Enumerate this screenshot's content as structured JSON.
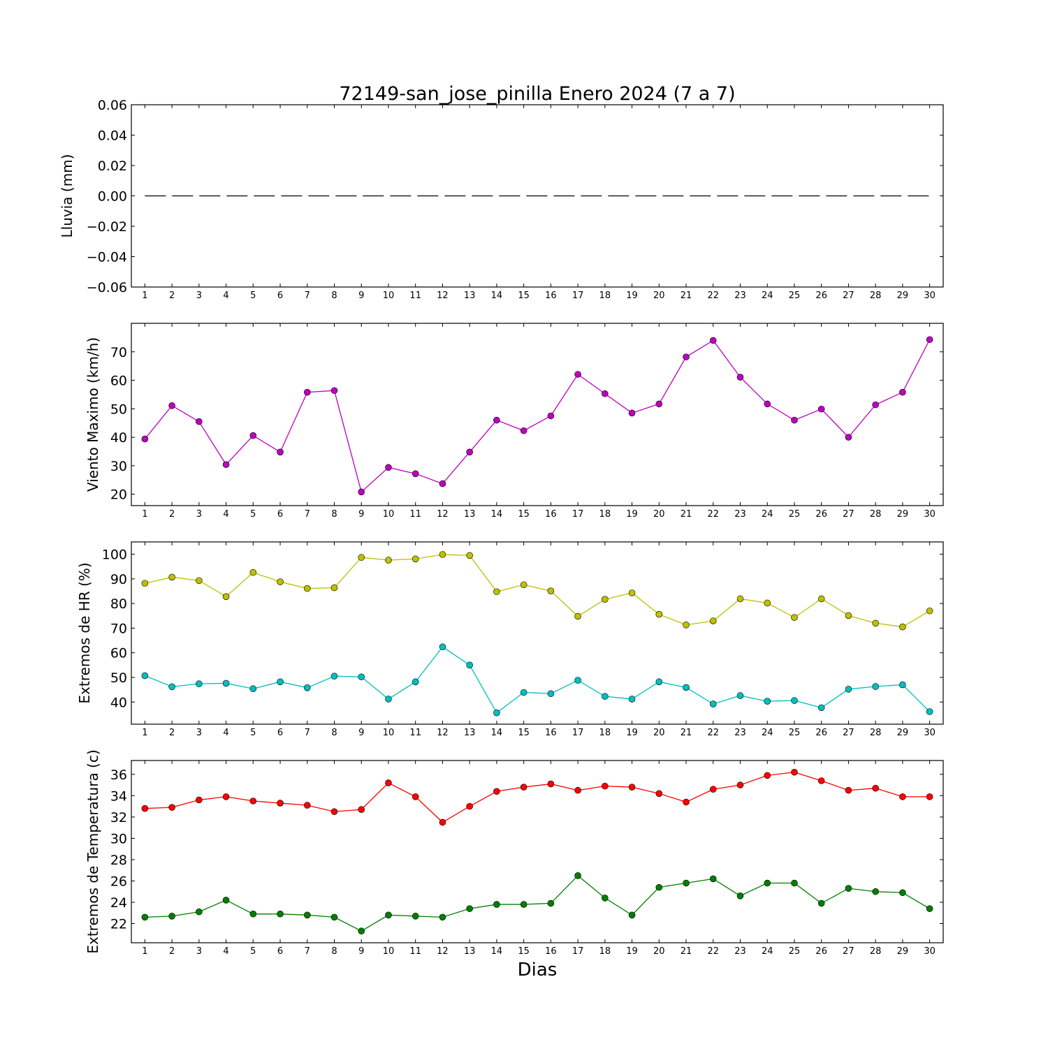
{
  "figure": {
    "title": "72149-san_jose_pinilla Enero 2024  (7 a 7)",
    "xlabel": "Dias"
  },
  "chart_data": [
    {
      "type": "line",
      "ylabel": "Lluvia (mm)",
      "x": [
        1,
        2,
        3,
        4,
        5,
        6,
        7,
        8,
        9,
        10,
        11,
        12,
        13,
        14,
        15,
        16,
        17,
        18,
        19,
        20,
        21,
        22,
        23,
        24,
        25,
        26,
        27,
        28,
        29,
        30
      ],
      "xlim": [
        0.5,
        30.5
      ],
      "ylim": [
        -0.06,
        0.06
      ],
      "yticks": [
        -0.06,
        -0.04,
        -0.02,
        0.0,
        0.02,
        0.04,
        0.06
      ],
      "ytick_labels": [
        "−0.06",
        "−0.04",
        "−0.02",
        "0.00",
        "0.02",
        "0.04",
        "0.06"
      ],
      "grid": false,
      "series": [
        {
          "color": "#000000",
          "style": "dashed",
          "markers": false,
          "values": [
            0,
            0,
            0,
            0,
            0,
            0,
            0,
            0,
            0,
            0,
            0,
            0,
            0,
            0,
            0,
            0,
            0,
            0,
            0,
            0,
            0,
            0,
            0,
            0,
            0,
            0,
            0,
            0,
            0,
            0
          ]
        }
      ]
    },
    {
      "type": "line",
      "ylabel": "Viento Maximo (km/h)",
      "x": [
        1,
        2,
        3,
        4,
        5,
        6,
        7,
        8,
        9,
        10,
        11,
        12,
        13,
        14,
        15,
        16,
        17,
        18,
        19,
        20,
        21,
        22,
        23,
        24,
        25,
        26,
        27,
        28,
        29,
        30
      ],
      "xlim": [
        0.5,
        30.5
      ],
      "ylim": [
        16,
        80
      ],
      "yticks": [
        20,
        30,
        40,
        50,
        60,
        70
      ],
      "ytick_labels": [
        "20",
        "30",
        "40",
        "50",
        "60",
        "70"
      ],
      "grid": false,
      "series": [
        {
          "color": "#bf00bf",
          "marker_color": "#bf00bf",
          "markers": true,
          "values": [
            39.4,
            51.1,
            45.5,
            30.4,
            40.6,
            34.8,
            55.8,
            56.4,
            20.8,
            29.4,
            27.2,
            23.7,
            34.8,
            46.0,
            42.3,
            47.5,
            62.1,
            55.3,
            48.5,
            51.7,
            68.2,
            74.0,
            61.1,
            51.7,
            46.0,
            49.9,
            40.0,
            51.4,
            55.8,
            74.3
          ]
        }
      ]
    },
    {
      "type": "line",
      "ylabel": "Extremos de HR (%)",
      "x": [
        1,
        2,
        3,
        4,
        5,
        6,
        7,
        8,
        9,
        10,
        11,
        12,
        13,
        14,
        15,
        16,
        17,
        18,
        19,
        20,
        21,
        22,
        23,
        24,
        25,
        26,
        27,
        28,
        29,
        30
      ],
      "xlim": [
        0.5,
        30.5
      ],
      "ylim": [
        31,
        105
      ],
      "yticks": [
        40,
        50,
        60,
        70,
        80,
        90,
        100
      ],
      "ytick_labels": [
        "40",
        "50",
        "60",
        "70",
        "80",
        "90",
        "100"
      ],
      "grid": false,
      "series": [
        {
          "color": "#bfbf00",
          "marker_color": "#bfbf00",
          "markers": true,
          "values": [
            88.2,
            90.7,
            89.3,
            82.8,
            92.6,
            88.8,
            86.1,
            86.4,
            98.7,
            97.6,
            98.1,
            99.9,
            99.5,
            84.8,
            87.6,
            85.1,
            74.8,
            81.7,
            84.3,
            75.6,
            71.3,
            72.9,
            81.9,
            80.2,
            74.3,
            81.9,
            75.1,
            72.0,
            70.5,
            77.0
          ]
        },
        {
          "color": "#00bfbf",
          "marker_color": "#00bfbf",
          "markers": true,
          "values": [
            50.7,
            46.2,
            47.4,
            47.6,
            45.4,
            48.2,
            45.8,
            50.5,
            50.2,
            41.2,
            48.2,
            62.4,
            55.0,
            35.6,
            43.9,
            43.4,
            48.8,
            42.3,
            41.2,
            48.2,
            45.9,
            39.2,
            42.6,
            40.3,
            40.6,
            37.7,
            45.2,
            46.3,
            47.0,
            36.1
          ]
        }
      ]
    },
    {
      "type": "line",
      "ylabel": "Extremos de Temperatura (c)",
      "x": [
        1,
        2,
        3,
        4,
        5,
        6,
        7,
        8,
        9,
        10,
        11,
        12,
        13,
        14,
        15,
        16,
        17,
        18,
        19,
        20,
        21,
        22,
        23,
        24,
        25,
        26,
        27,
        28,
        29,
        30
      ],
      "xlim": [
        0.5,
        30.5
      ],
      "ylim": [
        20.2,
        37.3
      ],
      "yticks": [
        22,
        24,
        26,
        28,
        30,
        32,
        34,
        36
      ],
      "ytick_labels": [
        "22",
        "24",
        "26",
        "28",
        "30",
        "32",
        "34",
        "36"
      ],
      "grid": false,
      "series": [
        {
          "color": "#ff0000",
          "marker_color": "#ff0000",
          "markers": true,
          "values": [
            32.8,
            32.9,
            33.6,
            33.9,
            33.5,
            33.3,
            33.1,
            32.5,
            32.7,
            35.2,
            33.9,
            31.5,
            33.0,
            34.4,
            34.8,
            35.1,
            34.5,
            34.9,
            34.8,
            34.2,
            33.4,
            34.6,
            35.0,
            35.9,
            36.2,
            35.4,
            34.5,
            34.7,
            33.9,
            33.9
          ]
        },
        {
          "color": "#007f00",
          "marker_color": "#007f00",
          "markers": true,
          "values": [
            22.6,
            22.7,
            23.1,
            24.2,
            22.9,
            22.9,
            22.8,
            22.6,
            21.3,
            22.8,
            22.7,
            22.6,
            23.4,
            23.8,
            23.8,
            23.9,
            26.5,
            24.4,
            22.8,
            25.4,
            25.8,
            26.2,
            24.6,
            25.8,
            25.8,
            23.9,
            25.3,
            25.0,
            24.9,
            23.4
          ]
        }
      ]
    }
  ]
}
